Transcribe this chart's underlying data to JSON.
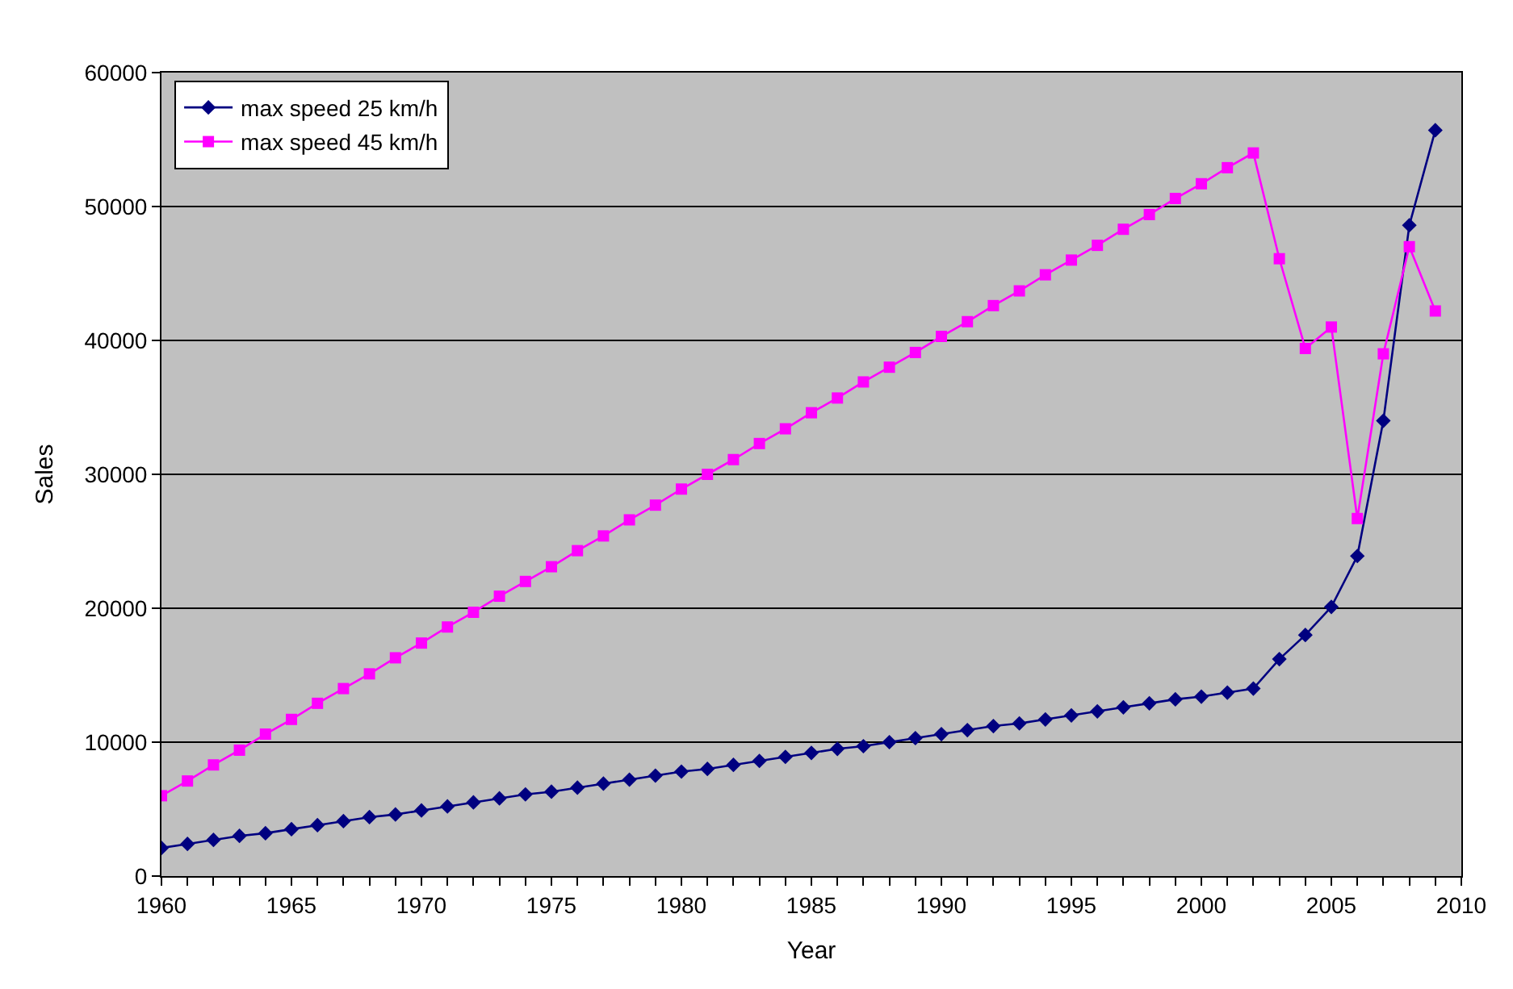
{
  "chart_data": {
    "type": "line",
    "xlabel": "Year",
    "ylabel": "Sales",
    "x": [
      1960,
      1961,
      1962,
      1963,
      1964,
      1965,
      1966,
      1967,
      1968,
      1969,
      1970,
      1971,
      1972,
      1973,
      1974,
      1975,
      1976,
      1977,
      1978,
      1979,
      1980,
      1981,
      1982,
      1983,
      1984,
      1985,
      1986,
      1987,
      1988,
      1989,
      1990,
      1991,
      1992,
      1993,
      1994,
      1995,
      1996,
      1997,
      1998,
      1999,
      2000,
      2001,
      2002,
      2003,
      2004,
      2005,
      2006,
      2007,
      2008,
      2009
    ],
    "series": [
      {
        "name": "max speed 25 km/h",
        "color": "#000080",
        "marker": "diamond",
        "values": [
          2100,
          2400,
          2700,
          3000,
          3200,
          3500,
          3800,
          4100,
          4400,
          4600,
          4900,
          5200,
          5500,
          5800,
          6100,
          6300,
          6600,
          6900,
          7200,
          7500,
          7800,
          8000,
          8300,
          8600,
          8900,
          9200,
          9500,
          9700,
          10000,
          10300,
          10600,
          10900,
          11200,
          11400,
          11700,
          12000,
          12300,
          12600,
          12900,
          13200,
          13400,
          13700,
          14000,
          16200,
          18000,
          20100,
          23900,
          34000,
          48600,
          55700
        ]
      },
      {
        "name": "max speed 45 km/h",
        "color": "#ff00ff",
        "marker": "square",
        "values": [
          6000,
          7100,
          8300,
          9400,
          10600,
          11700,
          12900,
          14000,
          15100,
          16300,
          17400,
          18600,
          19700,
          20900,
          22000,
          23100,
          24300,
          25400,
          26600,
          27700,
          28900,
          30000,
          31100,
          32300,
          33400,
          34600,
          35700,
          36900,
          38000,
          39100,
          40300,
          41400,
          42600,
          43700,
          44900,
          46000,
          47100,
          48300,
          49400,
          50600,
          51700,
          52900,
          54000,
          46100,
          39400,
          41000,
          26700,
          39000,
          47000,
          42200
        ]
      }
    ],
    "xlim": [
      1960,
      2010
    ],
    "xticks": [
      1960,
      {
        "value": 1961,
        "label": null
      },
      {
        "value": 1962,
        "label": null
      },
      {
        "value": 1963,
        "label": null
      },
      {
        "value": 1964,
        "label": null
      },
      1965,
      {
        "value": 1966,
        "label": null
      },
      {
        "value": 1967,
        "label": null
      },
      {
        "value": 1968,
        "label": null
      },
      {
        "value": 1969,
        "label": null
      },
      1970,
      {
        "value": 1971,
        "label": null
      },
      {
        "value": 1972,
        "label": null
      },
      {
        "value": 1973,
        "label": null
      },
      {
        "value": 1974,
        "label": null
      },
      1975,
      {
        "value": 1976,
        "label": null
      },
      {
        "value": 1977,
        "label": null
      },
      {
        "value": 1978,
        "label": null
      },
      {
        "value": 1979,
        "label": null
      },
      1980,
      {
        "value": 1981,
        "label": null
      },
      {
        "value": 1982,
        "label": null
      },
      {
        "value": 1983,
        "label": null
      },
      {
        "value": 1984,
        "label": null
      },
      1985,
      {
        "value": 1986,
        "label": null
      },
      {
        "value": 1987,
        "label": null
      },
      {
        "value": 1988,
        "label": null
      },
      {
        "value": 1989,
        "label": null
      },
      1990,
      {
        "value": 1991,
        "label": null
      },
      {
        "value": 1992,
        "label": null
      },
      {
        "value": 1993,
        "label": null
      },
      {
        "value": 1994,
        "label": null
      },
      1995,
      {
        "value": 1996,
        "label": null
      },
      {
        "value": 1997,
        "label": null
      },
      {
        "value": 1998,
        "label": null
      },
      {
        "value": 1999,
        "label": null
      },
      2000,
      {
        "value": 2001,
        "label": null
      },
      {
        "value": 2002,
        "label": null
      },
      {
        "value": 2003,
        "label": null
      },
      {
        "value": 2004,
        "label": null
      },
      2005,
      {
        "value": 2006,
        "label": null
      },
      {
        "value": 2007,
        "label": null
      },
      {
        "value": 2008,
        "label": null
      },
      {
        "value": 2009,
        "label": null
      },
      2010
    ],
    "ylim": [
      0,
      60000
    ],
    "yticks": [
      0,
      10000,
      20000,
      30000,
      40000,
      50000,
      60000
    ],
    "grid": "y",
    "legend": "top left",
    "line_style": "solid"
  }
}
